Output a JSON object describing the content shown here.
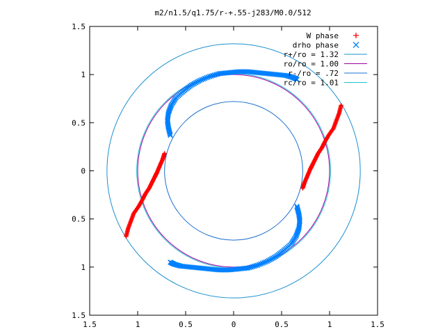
{
  "chart_data": {
    "type": "scatter",
    "title": "m2/n1.5/q1.75/r-+.55-j283/M0.0/512",
    "xlabel": "",
    "ylabel": "",
    "xlim": [
      -1.5,
      1.5
    ],
    "ylim": [
      -1.5,
      1.5
    ],
    "x_ticks": [
      {
        "value": -1.5,
        "label": "1.5"
      },
      {
        "value": -1.0,
        "label": "1"
      },
      {
        "value": -0.5,
        "label": "0.5"
      },
      {
        "value": 0.0,
        "label": "0"
      },
      {
        "value": 0.5,
        "label": "0.5"
      },
      {
        "value": 1.0,
        "label": "1"
      },
      {
        "value": 1.5,
        "label": "1.5"
      }
    ],
    "y_ticks": [
      {
        "value": 1.5,
        "label": "1.5"
      },
      {
        "value": 1.0,
        "label": "1"
      },
      {
        "value": 0.5,
        "label": "0.5"
      },
      {
        "value": 0.0,
        "label": "0"
      },
      {
        "value": -0.5,
        "label": "0.5"
      },
      {
        "value": -1.0,
        "label": "1"
      },
      {
        "value": -1.5,
        "label": "1.5"
      }
    ],
    "grid": false,
    "legend_position": "top-right",
    "legend": [
      {
        "label": "W phase",
        "marker": "+",
        "color": "#ff0000"
      },
      {
        "label": "drho phase",
        "marker": "x",
        "color": "#0080ff"
      },
      {
        "label": "r+/ro = 1.32",
        "marker": "line",
        "color": "#1a8fcf"
      },
      {
        "label": "ro/ro = 1.00",
        "marker": "line",
        "color": "#a000a0"
      },
      {
        "label": "r-/ro = .72",
        "marker": "line",
        "color": "#1a6fcf"
      },
      {
        "label": "rc/ro = 1.01",
        "marker": "line",
        "color": "#20c0d0"
      }
    ],
    "circles": [
      {
        "name": "r+/ro = 1.32",
        "radius": 1.32,
        "color": "#1a8fcf"
      },
      {
        "name": "ro/ro = 1.00",
        "radius": 1.0,
        "color": "#a000a0"
      },
      {
        "name": "r-/ro = .72",
        "radius": 0.72,
        "color": "#1a6fcf"
      },
      {
        "name": "rc/ro = 1.01",
        "radius": 1.01,
        "color": "#20c0d0"
      }
    ],
    "series": [
      {
        "name": "W phase",
        "marker": "+",
        "color": "#ff0000",
        "arms": [
          [
            [
              1.12,
              0.68
            ],
            [
              1.1,
              0.6
            ],
            [
              1.07,
              0.52
            ],
            [
              1.04,
              0.44
            ],
            [
              0.99,
              0.37
            ],
            [
              0.95,
              0.3
            ],
            [
              0.92,
              0.24
            ],
            [
              0.88,
              0.18
            ],
            [
              0.85,
              0.12
            ],
            [
              0.82,
              0.06
            ],
            [
              0.8,
              0.02
            ],
            [
              0.77,
              -0.05
            ],
            [
              0.74,
              -0.12
            ],
            [
              0.72,
              -0.18
            ]
          ],
          [
            [
              -1.12,
              -0.68
            ],
            [
              -1.1,
              -0.6
            ],
            [
              -1.07,
              -0.52
            ],
            [
              -1.04,
              -0.44
            ],
            [
              -0.99,
              -0.37
            ],
            [
              -0.95,
              -0.3
            ],
            [
              -0.92,
              -0.24
            ],
            [
              -0.88,
              -0.18
            ],
            [
              -0.85,
              -0.12
            ],
            [
              -0.82,
              -0.06
            ],
            [
              -0.8,
              -0.02
            ],
            [
              -0.77,
              0.05
            ],
            [
              -0.74,
              0.12
            ],
            [
              -0.72,
              0.18
            ]
          ]
        ]
      },
      {
        "name": "drho phase",
        "marker": "x",
        "color": "#0080ff",
        "arms": [
          [
            [
              -0.66,
              0.37
            ],
            [
              -0.68,
              0.45
            ],
            [
              -0.69,
              0.52
            ],
            [
              -0.68,
              0.6
            ],
            [
              -0.65,
              0.68
            ],
            [
              -0.6,
              0.76
            ],
            [
              -0.52,
              0.83
            ],
            [
              -0.44,
              0.89
            ],
            [
              -0.35,
              0.94
            ],
            [
              -0.25,
              0.98
            ],
            [
              -0.15,
              1.01
            ],
            [
              -0.05,
              1.02
            ],
            [
              0.05,
              1.03
            ],
            [
              0.15,
              1.03
            ],
            [
              0.25,
              1.02
            ],
            [
              0.35,
              1.01
            ],
            [
              0.45,
              1.0
            ],
            [
              0.55,
              0.99
            ],
            [
              0.62,
              0.97
            ],
            [
              0.66,
              0.95
            ]
          ],
          [
            [
              0.66,
              -0.37
            ],
            [
              0.68,
              -0.45
            ],
            [
              0.69,
              -0.52
            ],
            [
              0.68,
              -0.6
            ],
            [
              0.65,
              -0.68
            ],
            [
              0.6,
              -0.76
            ],
            [
              0.52,
              -0.83
            ],
            [
              0.44,
              -0.89
            ],
            [
              0.35,
              -0.94
            ],
            [
              0.25,
              -0.98
            ],
            [
              0.15,
              -1.01
            ],
            [
              0.05,
              -1.02
            ],
            [
              -0.05,
              -1.03
            ],
            [
              -0.15,
              -1.03
            ],
            [
              -0.25,
              -1.02
            ],
            [
              -0.35,
              -1.01
            ],
            [
              -0.45,
              -1.0
            ],
            [
              -0.55,
              -0.99
            ],
            [
              -0.62,
              -0.97
            ],
            [
              -0.66,
              -0.95
            ]
          ]
        ]
      }
    ]
  }
}
